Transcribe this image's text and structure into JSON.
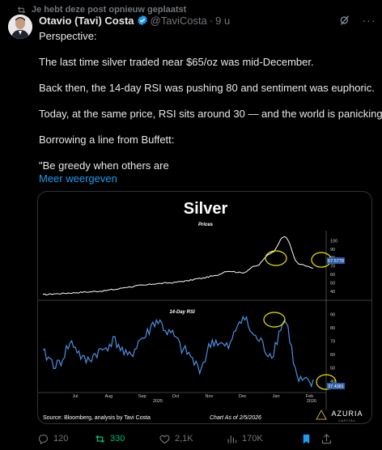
{
  "repost_banner": "Je hebt deze post opnieuw geplaatst",
  "author": {
    "name": "Otavio (Tavi) Costa",
    "handle": "@TaviCosta",
    "time": "9 u"
  },
  "tweet": {
    "lines": [
      "Perspective:",
      "",
      "The last time silver traded near $65/oz was mid-December.",
      "",
      "Back then, the 14-day RSI was pushing 80 and sentiment was euphoric.",
      "",
      "Today, at the same price, RSI sits around 30 — and the world is panicking.",
      "",
      "Borrowing a line from Buffett:",
      "",
      "\"Be greedy when others are"
    ],
    "show_more": "Meer weergeven"
  },
  "chart_image": {
    "title": "Silver",
    "price_panel_label": "Prices",
    "rsi_panel_label": "14-Day RSI",
    "price_axis": [
      "100",
      "90",
      "80",
      "70",
      "60",
      "50",
      "40"
    ],
    "price_last_value": "67.5778",
    "rsi_axis": [
      "90",
      "80",
      "70",
      "60",
      "50",
      "40"
    ],
    "rsi_last_value": "37.4381",
    "months": [
      "Jul",
      "Aug",
      "Sep",
      "Oct",
      "Nov",
      "Dec",
      "Jan",
      "Feb"
    ],
    "year_labels": [
      "2025",
      "2026"
    ],
    "source": "Source: Bloomberg, analysis by Tavi Costa",
    "asof": "Chart As of 2/5/2026",
    "brand": "AZURIA",
    "brand_sub": "CAPITAL",
    "chart_data": [
      {
        "type": "line",
        "title": "Prices",
        "x": [
          "Jul",
          "Aug",
          "Sep",
          "Oct",
          "Nov",
          "Dec",
          "Jan",
          "Feb"
        ],
        "series": [
          {
            "values": [
              36,
              38,
              42,
              47,
              50,
              58,
              80,
              67.6
            ]
          }
        ],
        "ylim": [
          35,
          110
        ]
      },
      {
        "type": "line",
        "title": "14-Day RSI",
        "x": [
          "Jul",
          "Aug",
          "Sep",
          "Oct",
          "Nov",
          "Dec",
          "Jan",
          "Feb"
        ],
        "series": [
          {
            "values": [
              62,
              58,
              72,
              85,
              55,
              88,
              80,
              37.4
            ]
          }
        ],
        "ylim": [
          35,
          92
        ]
      }
    ],
    "colors": {
      "price_line": "#ffffff",
      "rsi_line": "#4a90e2",
      "highlight": "#f2e300",
      "panel_bg": "#000000",
      "badge": "#2d5da8"
    }
  },
  "actions": {
    "reply": "120",
    "repost": "330",
    "like": "2,1K",
    "views": "170K"
  }
}
